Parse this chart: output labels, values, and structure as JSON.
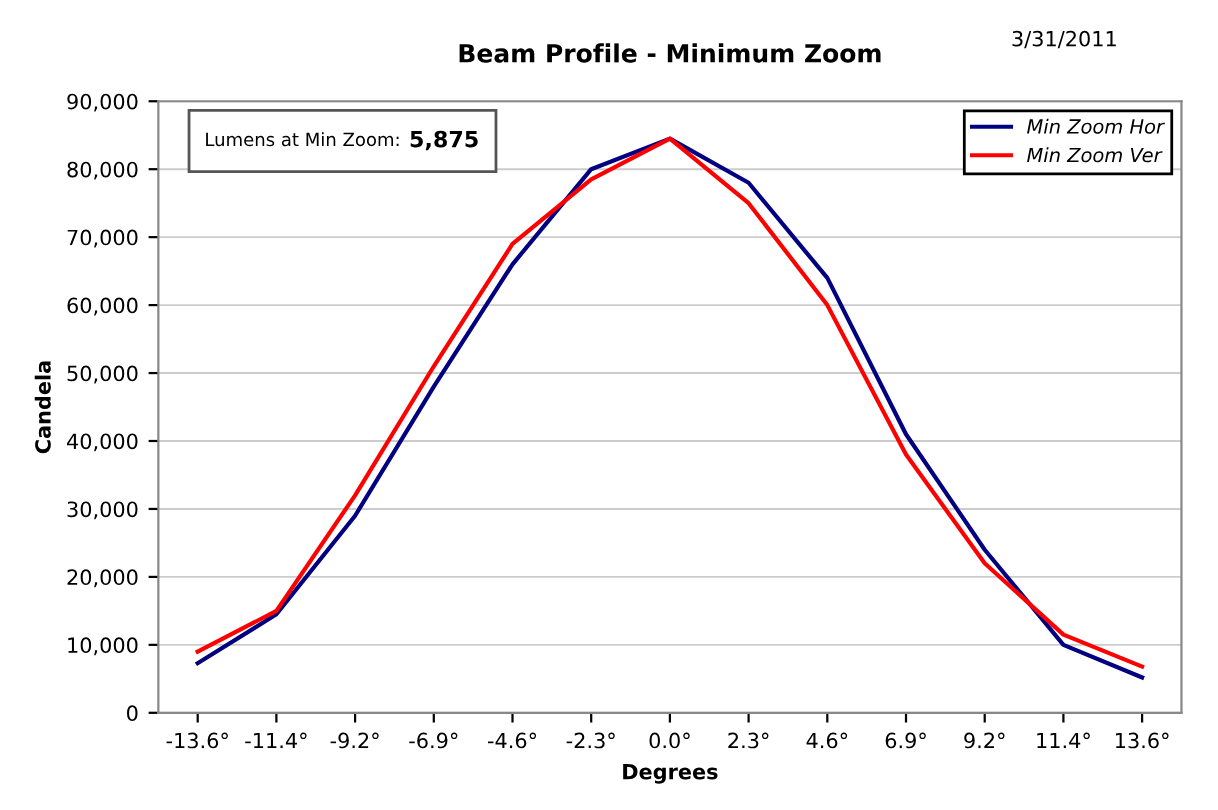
{
  "chart_data": {
    "type": "line",
    "title": "Beam Profile - Minimum Zoom",
    "xlabel": "Degrees",
    "ylabel": "Candela",
    "annotations": [
      "3/31/2011",
      "Lumens at Min Zoom:",
      "5,875"
    ],
    "categories": [
      "-13.6°",
      "-11.4°",
      "-9.2°",
      "-6.9°",
      "-4.6°",
      "-2.3°",
      "0.0°",
      "2.3°",
      "4.6°",
      "6.9°",
      "9.2°",
      "11.4°",
      "13.6°"
    ],
    "series": [
      {
        "name": "Min Zoom Hor",
        "color": "#000080",
        "values": [
          7300,
          14500,
          29000,
          48000,
          66000,
          80000,
          84500,
          78000,
          64000,
          41000,
          24000,
          10000,
          5200
        ]
      },
      {
        "name": "Min Zoom Ver",
        "color": "#ff0000",
        "values": [
          9000,
          15000,
          32000,
          51000,
          69000,
          78500,
          84500,
          75000,
          60000,
          38000,
          22000,
          11500,
          6800
        ]
      }
    ],
    "ylim": [
      0,
      90000
    ],
    "yticks": [
      0,
      {
        "value": 10000,
        "label": "10,000"
      },
      {
        "value": 20000,
        "label": "20,000"
      },
      {
        "value": 30000,
        "label": "30,000"
      },
      {
        "value": 40000,
        "label": "40,000"
      },
      {
        "value": 50000,
        "label": "50,000"
      },
      {
        "value": 60000,
        "label": "60,000"
      },
      {
        "value": 70000,
        "label": "70,000"
      },
      {
        "value": 80000,
        "label": "80,000"
      },
      {
        "value": 90000,
        "label": "90,000"
      }
    ],
    "grid": "y",
    "legend": "top right",
    "marker": "none",
    "line_style": "solid"
  }
}
